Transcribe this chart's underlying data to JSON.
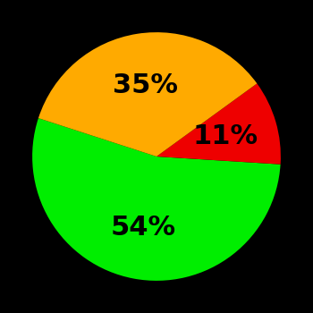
{
  "slices": [
    54,
    11,
    35
  ],
  "colors": [
    "#00ee00",
    "#ee0000",
    "#ffaa00"
  ],
  "labels": [
    "54%",
    "11%",
    "35%"
  ],
  "background_color": "#000000",
  "text_color": "#000000",
  "font_size": 22,
  "font_weight": "bold",
  "startangle": 162,
  "label_distance": 0.58,
  "label_angles": [
    54,
    -77,
    -18
  ]
}
